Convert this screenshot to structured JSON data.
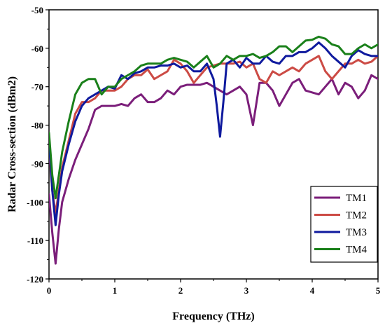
{
  "chart_data": {
    "type": "line",
    "title": "",
    "xlabel": "Frequency (THz)",
    "ylabel": "Radar Cross-section (dBm2)",
    "xlim": [
      0,
      5
    ],
    "ylim": [
      -120,
      -50
    ],
    "x_ticks": [
      0,
      1,
      2,
      3,
      4,
      5
    ],
    "y_ticks": [
      -120,
      -110,
      -100,
      -90,
      -80,
      -70,
      -60,
      -50
    ],
    "grid": false,
    "legend_position": "bottom-right",
    "series": [
      {
        "name": "TM1",
        "color": "#7b1e7a",
        "x": [
          0,
          0.05,
          0.1,
          0.15,
          0.2,
          0.3,
          0.4,
          0.5,
          0.6,
          0.7,
          0.8,
          0.9,
          1.0,
          1.1,
          1.2,
          1.3,
          1.4,
          1.5,
          1.6,
          1.7,
          1.8,
          1.9,
          2.0,
          2.1,
          2.2,
          2.3,
          2.4,
          2.5,
          2.6,
          2.7,
          2.8,
          2.9,
          3.0,
          3.05,
          3.1,
          3.2,
          3.3,
          3.4,
          3.5,
          3.6,
          3.7,
          3.8,
          3.9,
          4.0,
          4.1,
          4.2,
          4.3,
          4.4,
          4.5,
          4.6,
          4.7,
          4.8,
          4.9,
          5.0
        ],
        "y": [
          -98,
          -108,
          -116,
          -107,
          -100,
          -94,
          -89,
          -85,
          -81,
          -76,
          -75,
          -75,
          -75,
          -74.5,
          -75,
          -73,
          -72,
          -74,
          -74,
          -73,
          -71,
          -72,
          -70,
          -69.5,
          -69.5,
          -69.5,
          -69,
          -70,
          -71,
          -72,
          -71,
          -70,
          -72,
          -76,
          -80,
          -69,
          -69,
          -71,
          -75,
          -72,
          -69,
          -68,
          -71,
          -71.5,
          -72,
          -70,
          -68,
          -72,
          -69,
          -70,
          -73,
          -71,
          -67,
          -68
        ]
      },
      {
        "name": "TM2",
        "color": "#cc4b45",
        "x": [
          0,
          0.05,
          0.1,
          0.15,
          0.2,
          0.3,
          0.4,
          0.5,
          0.6,
          0.7,
          0.8,
          0.9,
          1.0,
          1.1,
          1.2,
          1.3,
          1.4,
          1.5,
          1.6,
          1.7,
          1.8,
          1.9,
          2.0,
          2.1,
          2.2,
          2.3,
          2.4,
          2.5,
          2.6,
          2.7,
          2.8,
          2.9,
          3.0,
          3.1,
          3.2,
          3.3,
          3.4,
          3.5,
          3.6,
          3.7,
          3.8,
          3.9,
          4.0,
          4.1,
          4.2,
          4.3,
          4.4,
          4.5,
          4.6,
          4.7,
          4.8,
          4.9,
          5.0
        ],
        "y": [
          -86,
          -97,
          -103,
          -97,
          -91,
          -84,
          -77,
          -74,
          -74,
          -73,
          -71,
          -71,
          -71,
          -70,
          -68,
          -67,
          -67,
          -65.5,
          -68,
          -67,
          -66,
          -63,
          -64,
          -66,
          -69,
          -67,
          -65,
          -64.5,
          -64,
          -64,
          -64,
          -63.5,
          -65,
          -64,
          -68,
          -69,
          -66,
          -67,
          -66,
          -65,
          -66,
          -64,
          -63,
          -62,
          -66,
          -68,
          -66,
          -64,
          -64,
          -63,
          -64,
          -63.5,
          -62
        ]
      },
      {
        "name": "TM3",
        "color": "#0f1a9e",
        "x": [
          0,
          0.05,
          0.1,
          0.15,
          0.2,
          0.3,
          0.4,
          0.5,
          0.6,
          0.7,
          0.8,
          0.9,
          1.0,
          1.1,
          1.2,
          1.3,
          1.4,
          1.5,
          1.6,
          1.7,
          1.8,
          1.9,
          2.0,
          2.1,
          2.2,
          2.3,
          2.4,
          2.5,
          2.55,
          2.6,
          2.65,
          2.7,
          2.8,
          2.9,
          3.0,
          3.1,
          3.2,
          3.3,
          3.4,
          3.5,
          3.6,
          3.7,
          3.8,
          3.9,
          4.0,
          4.1,
          4.2,
          4.3,
          4.4,
          4.5,
          4.6,
          4.7,
          4.8,
          4.9,
          5.0
        ],
        "y": [
          -84,
          -97,
          -106,
          -98,
          -92,
          -85,
          -79,
          -75,
          -73,
          -72,
          -71,
          -70,
          -70.5,
          -67,
          -68,
          -66.5,
          -66,
          -65,
          -65,
          -64.5,
          -64.5,
          -64,
          -65,
          -64.5,
          -66,
          -66,
          -64,
          -68,
          -75,
          -83,
          -74,
          -64,
          -63,
          -65,
          -62.5,
          -64,
          -64,
          -62,
          -63.5,
          -64,
          -62,
          -62,
          -61,
          -61,
          -60,
          -58.5,
          -60,
          -62,
          -63.5,
          -65,
          -62,
          -60.5,
          -61.5,
          -62,
          -62
        ]
      },
      {
        "name": "TM4",
        "color": "#1a801a",
        "x": [
          0,
          0.05,
          0.1,
          0.15,
          0.2,
          0.3,
          0.4,
          0.5,
          0.6,
          0.7,
          0.8,
          0.9,
          1.0,
          1.1,
          1.2,
          1.3,
          1.4,
          1.5,
          1.6,
          1.7,
          1.8,
          1.9,
          2.0,
          2.1,
          2.2,
          2.3,
          2.4,
          2.5,
          2.6,
          2.7,
          2.8,
          2.9,
          3.0,
          3.1,
          3.2,
          3.3,
          3.4,
          3.5,
          3.6,
          3.7,
          3.8,
          3.9,
          4.0,
          4.1,
          4.2,
          4.3,
          4.4,
          4.5,
          4.6,
          4.7,
          4.8,
          4.9,
          5.0
        ],
        "y": [
          -82,
          -93,
          -99,
          -93,
          -87,
          -79,
          -72,
          -69,
          -68,
          -68,
          -72,
          -70,
          -70,
          -68,
          -67,
          -66,
          -64.5,
          -64,
          -64,
          -64,
          -63,
          -62.5,
          -63,
          -63.5,
          -65,
          -63.5,
          -62,
          -65,
          -64,
          -62,
          -63,
          -62,
          -62,
          -61.5,
          -62.5,
          -62,
          -61,
          -59.5,
          -59.5,
          -61,
          -59.5,
          -58,
          -57.8,
          -57,
          -57.5,
          -59,
          -59.5,
          -61.5,
          -61.5,
          -60,
          -59,
          -60,
          -59
        ]
      }
    ]
  }
}
